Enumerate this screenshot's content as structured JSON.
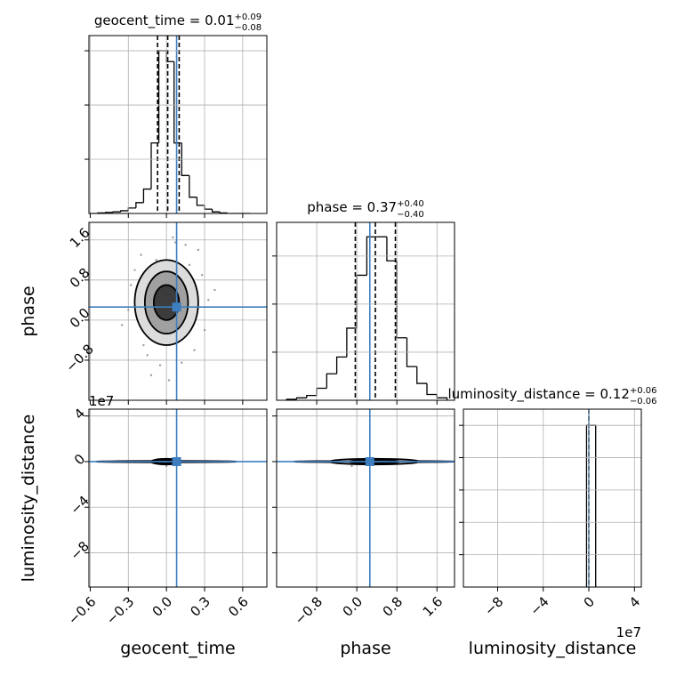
{
  "chart_data": {
    "type": "corner",
    "color": "#000000",
    "truth_color": "#3d7ebf",
    "scatter_color": "#9a9a9a",
    "contour_fills": [
      "#dcdcdc",
      "#a0a0a0",
      "#3c3c3c"
    ],
    "grid": true,
    "offset_text": "1e7",
    "parameters": [
      {
        "label": "geocent_time",
        "title": "geocent_time = 0.01",
        "title_plus": "+0.09",
        "title_minus": "−0.08",
        "lim": [
          -0.61,
          0.79
        ],
        "ticks": [
          {
            "value": -0.6,
            "label": "−0.6"
          },
          {
            "value": -0.3,
            "label": "−0.3"
          },
          {
            "value": 0,
            "label": "0.0"
          },
          0.3,
          0.6
        ],
        "truth": 0.08,
        "quantiles": [
          -0.07,
          0.01,
          0.1
        ],
        "hist": {
          "bins": [
            -0.6,
            -0.54,
            -0.48,
            -0.42,
            -0.36,
            -0.3,
            -0.24,
            -0.18,
            -0.12,
            -0.06,
            0,
            0.06,
            0.12,
            0.18,
            0.24,
            0.3,
            0.36,
            0.42,
            0.48,
            0.54,
            0.6,
            0.66
          ],
          "values": [
            0,
            0.01,
            0.02,
            0.03,
            0.05,
            0.1,
            0.2,
            0.45,
            1.3,
            3.0,
            2.8,
            1.3,
            0.7,
            0.3,
            0.15,
            0.08,
            0.03,
            0.01,
            0,
            0,
            0
          ],
          "ylim": [
            0,
            3.28
          ],
          "yticks": [
            1,
            2,
            3
          ]
        }
      },
      {
        "label": "phase",
        "title": "phase = 0.37",
        "title_plus": "+0.40",
        "title_minus": "−0.40",
        "lim": [
          -1.6,
          1.95
        ],
        "ticks": [
          {
            "value": -0.8,
            "label": "−0.8"
          },
          {
            "value": 0,
            "label": "0.0"
          },
          0.8,
          1.6
        ],
        "truth": 0.26,
        "quantiles": [
          -0.03,
          0.37,
          0.77
        ],
        "hist": {
          "bins": [
            -1.4,
            -1.2,
            -1.0,
            -0.8,
            -0.6,
            -0.4,
            -0.2,
            0,
            0.2,
            0.4,
            0.6,
            0.8,
            1.0,
            1.2,
            1.4,
            1.6,
            1.8
          ],
          "values": [
            0.02,
            0.05,
            0.1,
            0.25,
            0.55,
            0.9,
            1.5,
            2.6,
            3.4,
            3.4,
            2.9,
            1.3,
            0.7,
            0.35,
            0.12,
            0.05
          ],
          "ylim": [
            0,
            3.7
          ],
          "yticks": [
            1,
            2,
            3
          ]
        }
      },
      {
        "label": "luminosity_distance",
        "title": "luminosity_distance = 0.12",
        "title_plus": "+0.06",
        "title_minus": "−0.06",
        "lim": [
          -110000000,
          46000000
        ],
        "ticks": [
          {
            "value": -80000000,
            "label": "−8"
          },
          {
            "value": -40000000,
            "label": "−4"
          },
          0,
          {
            "value": 40000000,
            "label": "4"
          }
        ],
        "truth": 0,
        "quantiles": [
          0.06,
          0.12,
          0.18
        ],
        "hist": {
          "bins": [
            -2000000,
            2000000,
            6000000
          ],
          "values": [
            5.0,
            5.0
          ],
          "ylim": [
            0,
            5.5
          ],
          "yticks": [
            1,
            2,
            3,
            4,
            5
          ]
        }
      }
    ],
    "pairs": [
      {
        "points": {
          "x": [
            -0.2,
            0.15,
            -0.05,
            0.28,
            -0.3,
            0.22,
            0.05,
            -0.12,
            0.33,
            -0.25,
            0.1,
            -0.08,
            0.18,
            -0.18,
            0.3,
            0.02,
            -0.28,
            0.25,
            -0.1,
            0.12,
            0.38,
            -0.35,
            0.07,
            -0.15
          ],
          "y": [
            1.3,
            1.5,
            -0.9,
            0.9,
            0.2,
            -0.6,
            1.65,
            -1.1,
            0.4,
            1.0,
            -0.3,
            1.2,
            1.1,
            -0.5,
            -0.2,
            -1.2,
            0.7,
            1.4,
            0.95,
            -0.85,
            0.6,
            -0.1,
            1.55,
            -0.7
          ]
        },
        "contours": [
          {
            "cx": 0,
            "cy": 0.35,
            "rx": 0.25,
            "ry": 0.85
          },
          {
            "cx": 0,
            "cy": 0.35,
            "rx": 0.17,
            "ry": 0.62
          },
          {
            "cx": 0,
            "cy": 0.35,
            "rx": 0.1,
            "ry": 0.35
          }
        ]
      },
      {
        "points": {
          "x": [
            0
          ],
          "y": [
            -3800000
          ]
        },
        "contours": [
          {
            "cx": 0,
            "cy": 0,
            "rx": 0.55,
            "ry": 600000
          },
          {
            "cx": 0,
            "cy": 0,
            "rx": 0.12,
            "ry": 2500000
          },
          {
            "cx": -0.02,
            "cy": 0,
            "rx": 0.08,
            "ry": 1500000
          }
        ]
      },
      {
        "points": {
          "x": [
            -0.1
          ],
          "y": [
            -3800000
          ]
        },
        "contours": [
          {
            "cx": 0.35,
            "cy": 0,
            "rx": 1.6,
            "ry": 600000
          },
          {
            "cx": 0.35,
            "cy": 0,
            "rx": 0.9,
            "ry": 2500000
          },
          {
            "cx": 0.35,
            "cy": 0,
            "rx": 0.5,
            "ry": 1500000
          }
        ]
      }
    ]
  }
}
